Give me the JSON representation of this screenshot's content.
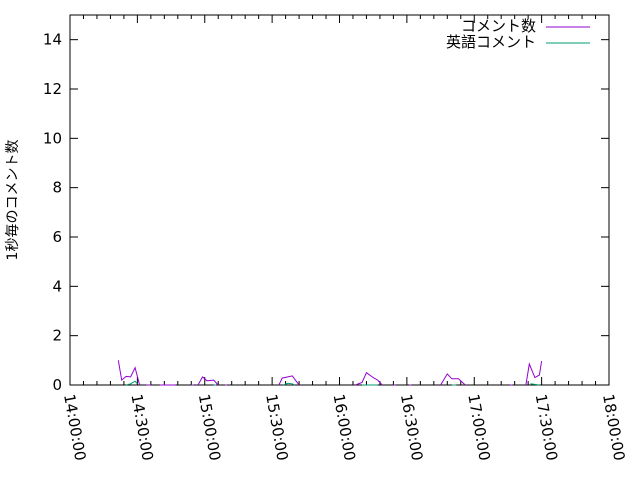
{
  "chart_data": {
    "type": "line",
    "title": "",
    "xlabel": "",
    "ylabel": "1秒毎のコメント数",
    "xlim": [
      "14:00:00",
      "18:00:00"
    ],
    "ylim": [
      0,
      15
    ],
    "x_ticks": [
      "14:00:00",
      "14:30:00",
      "15:00:00",
      "15:30:00",
      "16:00:00",
      "16:30:00",
      "17:00:00",
      "17:30:00",
      "18:00:00"
    ],
    "y_ticks": [
      0,
      2,
      4,
      6,
      8,
      10,
      12,
      14
    ],
    "grid": false,
    "legend_position": "top-right",
    "series": [
      {
        "name": "コメント数",
        "color": "#9400d3",
        "segments": [
          [
            [
              "14:21:30",
              1.0
            ],
            [
              "14:23:00",
              0.2
            ],
            [
              "14:25:00",
              0.35
            ],
            [
              "14:27:00",
              0.33
            ],
            [
              "14:29:00",
              0.7
            ],
            [
              "14:31:00",
              0
            ]
          ],
          [
            [
              "14:34:00",
              0
            ],
            [
              "14:36:00",
              0
            ]
          ],
          [
            [
              "14:40:00",
              0
            ],
            [
              "14:47:00",
              0
            ]
          ],
          [
            [
              "14:54:00",
              0
            ],
            [
              "14:55:00",
              0
            ]
          ],
          [
            [
              "14:57:00",
              0
            ],
            [
              "14:59:00",
              0.33
            ],
            [
              "15:01:00",
              0.17
            ],
            [
              "15:04:00",
              0.2
            ],
            [
              "15:06:00",
              0
            ]
          ],
          [
            [
              "15:09:00",
              0
            ],
            [
              "15:10:00",
              0
            ]
          ],
          [
            [
              "15:33:00",
              0
            ],
            [
              "15:34:30",
              0.28
            ],
            [
              "15:37:00",
              0.33
            ],
            [
              "15:39:00",
              0.37
            ],
            [
              "15:42:00",
              0
            ]
          ],
          [
            [
              "16:07:00",
              0
            ],
            [
              "16:10:00",
              0.1
            ],
            [
              "16:12:00",
              0.5
            ],
            [
              "16:15:00",
              0.3
            ],
            [
              "16:17:00",
              0.2
            ],
            [
              "16:19:00",
              0
            ]
          ],
          [
            [
              "16:24:00",
              0
            ],
            [
              "16:25:00",
              0
            ]
          ],
          [
            [
              "16:31:00",
              0
            ],
            [
              "16:32:00",
              0
            ]
          ],
          [
            [
              "16:45:00",
              0
            ],
            [
              "16:48:00",
              0.45
            ],
            [
              "16:50:00",
              0.25
            ],
            [
              "16:53:00",
              0.25
            ],
            [
              "16:56:00",
              0
            ]
          ],
          [
            [
              "17:16:00",
              0
            ],
            [
              "17:17:00",
              0
            ]
          ],
          [
            [
              "17:23:00",
              0
            ],
            [
              "17:24:30",
              0.85
            ],
            [
              "17:27:00",
              0.3
            ],
            [
              "17:29:00",
              0.4
            ],
            [
              "17:30:00",
              0.97
            ]
          ]
        ]
      },
      {
        "name": "英語コメント",
        "color": "#009e73",
        "segments": [
          [
            [
              "14:25:00",
              0
            ],
            [
              "14:27:00",
              0.05
            ],
            [
              "14:29:00",
              0.15
            ],
            [
              "14:30:00",
              0.05
            ]
          ],
          [
            [
              "15:04:00",
              0
            ],
            [
              "15:05:00",
              0
            ]
          ],
          [
            [
              "15:35:00",
              0
            ],
            [
              "15:37:00",
              0.07
            ],
            [
              "15:39:00",
              0.05
            ],
            [
              "15:40:00",
              0
            ]
          ],
          [
            [
              "16:10:00",
              0
            ],
            [
              "16:17:00",
              0
            ]
          ],
          [
            [
              "16:50:00",
              0
            ],
            [
              "16:52:00",
              0
            ]
          ],
          [
            [
              "17:25:00",
              0.05
            ],
            [
              "17:29:00",
              0
            ]
          ]
        ]
      }
    ]
  }
}
